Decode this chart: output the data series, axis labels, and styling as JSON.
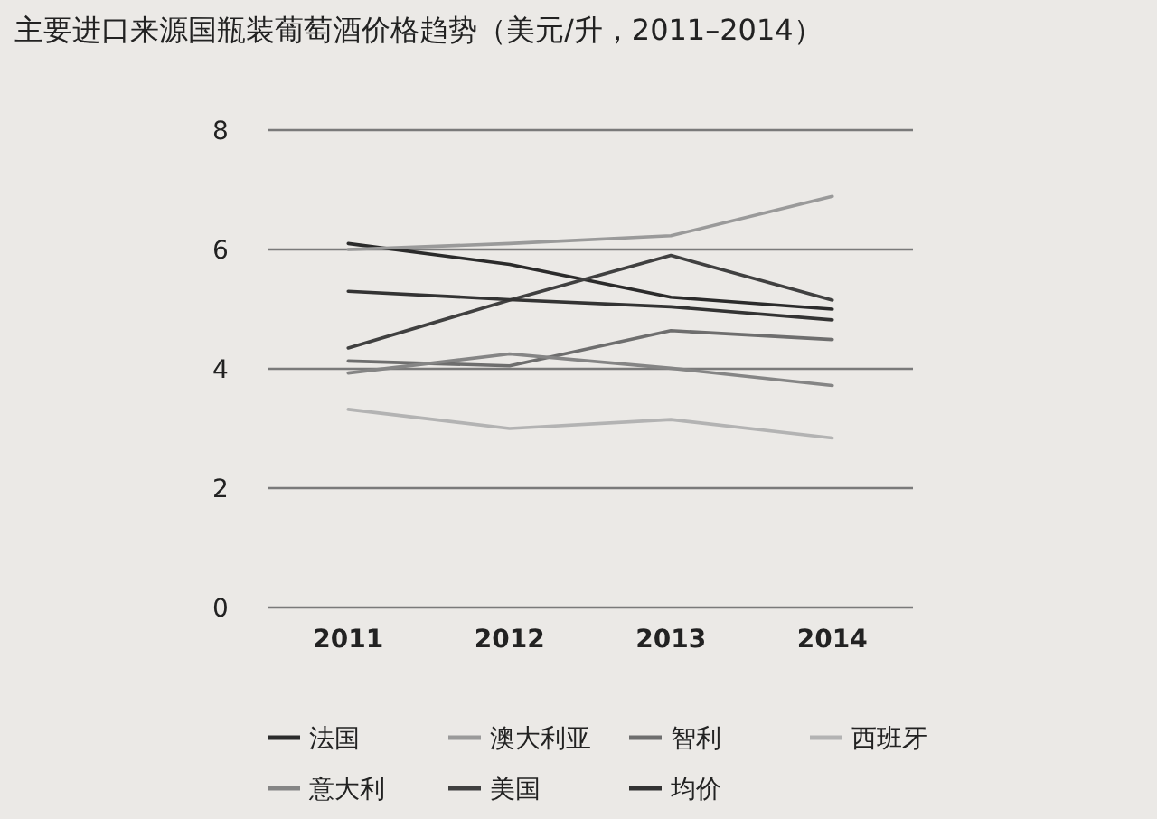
{
  "chart_data": {
    "type": "line",
    "title": "主要进口来源国瓶装葡萄酒价格趋势（美元/升，2011–2014）",
    "categories": [
      "2011",
      "2012",
      "2013",
      "2014"
    ],
    "series": [
      {
        "name": "法国",
        "color": "#2b2b2b",
        "values": [
          6.1,
          5.75,
          5.2,
          5.0
        ]
      },
      {
        "name": "澳大利亚",
        "color": "#9a9a9a",
        "values": [
          6.0,
          6.1,
          6.23,
          6.89
        ]
      },
      {
        "name": "智利",
        "color": "#6e6e6e",
        "values": [
          4.13,
          4.05,
          4.64,
          4.49
        ]
      },
      {
        "name": "西班牙",
        "color": "#b3b3b3",
        "values": [
          3.32,
          3.0,
          3.15,
          2.84
        ]
      },
      {
        "name": "意大利",
        "color": "#858585",
        "values": [
          3.93,
          4.25,
          4.01,
          3.72
        ]
      },
      {
        "name": "美国",
        "color": "#404040",
        "values": [
          4.35,
          5.15,
          5.9,
          5.15
        ]
      },
      {
        "name": "均价",
        "color": "#333333",
        "values": [
          5.3,
          5.16,
          5.04,
          4.82
        ]
      }
    ],
    "ylim": [
      0,
      8
    ],
    "yticks": [
      0,
      2,
      4,
      6,
      8
    ],
    "grid": "y",
    "legend": "bottom",
    "marker": "none",
    "line_style": "solid"
  }
}
